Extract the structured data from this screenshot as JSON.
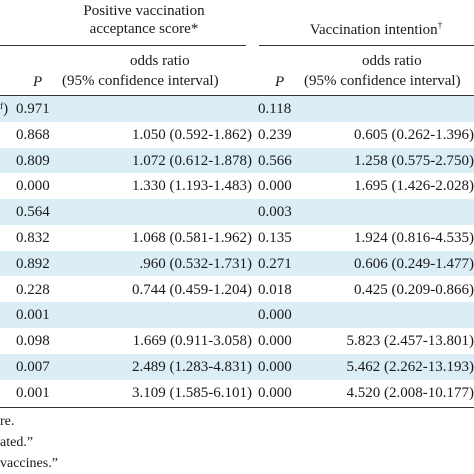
{
  "header": {
    "group1": {
      "line1": "Positive vaccination",
      "line2": "acceptance score",
      "mark": "*"
    },
    "group2": {
      "title": "Vaccination intention",
      "mark": "†"
    },
    "col_p": "P",
    "col_or_line1": "odds ratio",
    "col_or_line2": "(95% confidence interval)"
  },
  "rows": [
    {
      "stub": "ᶠ)",
      "p1": "0.971",
      "or1": "",
      "p2": "0.118",
      "or2": ""
    },
    {
      "stub": "",
      "p1": "0.868",
      "or1": "1.050 (0.592-1.862)",
      "p2": "0.239",
      "or2": "0.605 (0.262-1.396)"
    },
    {
      "stub": "",
      "p1": "0.809",
      "or1": "1.072 (0.612-1.878)",
      "p2": "0.566",
      "or2": "1.258 (0.575-2.750)"
    },
    {
      "stub": "",
      "p1": "0.000",
      "or1": "1.330 (1.193-1.483)",
      "p2": "0.000",
      "or2": "1.695 (1.426-2.028)"
    },
    {
      "stub": "",
      "p1": "0.564",
      "or1": "",
      "p2": "0.003",
      "or2": ""
    },
    {
      "stub": "",
      "p1": "0.832",
      "or1": "1.068 (0.581-1.962)",
      "p2": "0.135",
      "or2": "1.924 (0.816-4.535)"
    },
    {
      "stub": "",
      "p1": "0.892",
      "or1": ".960 (0.532-1.731)",
      "p2": "0.271",
      "or2": "0.606 (0.249-1.477)"
    },
    {
      "stub": "",
      "p1": "0.228",
      "or1": "0.744 (0.459-1.204)",
      "p2": "0.018",
      "or2": "0.425 (0.209-0.866)"
    },
    {
      "stub": "",
      "p1": "0.001",
      "or1": "",
      "p2": "0.000",
      "or2": ""
    },
    {
      "stub": "",
      "p1": "0.098",
      "or1": "1.669 (0.911-3.058)",
      "p2": "0.000",
      "or2": "5.823 (2.457-13.801)"
    },
    {
      "stub": "",
      "p1": "0.007",
      "or1": "2.489 (1.283-4.831)",
      "p2": "0.000",
      "or2": "5.462 (2.262-13.193)"
    },
    {
      "stub": "",
      "p1": "0.001",
      "or1": "3.109 (1.585-6.101)",
      "p2": "0.000",
      "or2": "4.520 (2.008-10.177)"
    }
  ],
  "footnotes": [
    "re.",
    "ated.”",
    "vaccines.”"
  ],
  "colors": {
    "stripe": "#dbeef5",
    "rule": "#333333"
  }
}
